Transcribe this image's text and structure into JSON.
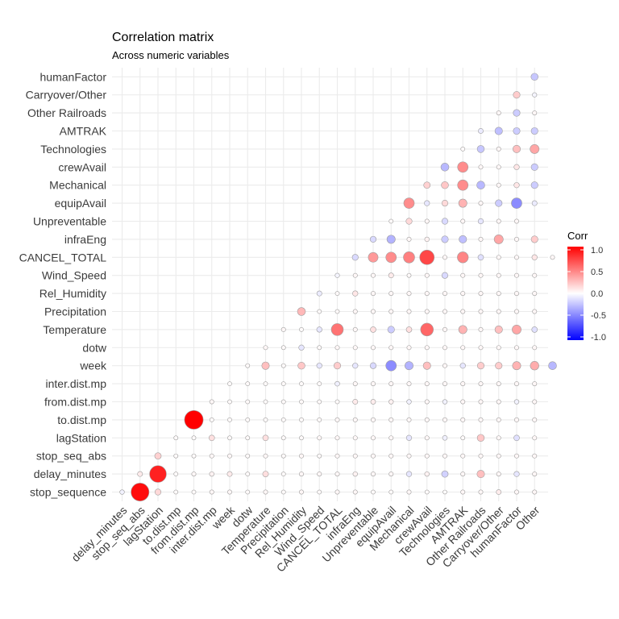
{
  "chart_data": {
    "type": "heatmap",
    "title": "Correlation matrix",
    "subtitle": "Across numeric variables",
    "variables": [
      "stop_sequence",
      "delay_minutes",
      "stop_seq_abs",
      "lagStation",
      "to.dist.mp",
      "from.dist.mp",
      "inter.dist.mp",
      "week",
      "dotw",
      "Temperature",
      "Precipitation",
      "Rel_Humidity",
      "Wind_Speed",
      "CANCEL_TOTAL",
      "infraEng",
      "Unpreventable",
      "equipAvail",
      "Mechanical",
      "crewAvail",
      "Technologies",
      "AMTRAK",
      "Other Railroads",
      "Carryover/Other",
      "humanFactor",
      "Other"
    ],
    "x_labels": [
      "delay_minutes",
      "stop_seq_abs",
      "lagStation",
      "to.dist.mp",
      "from.dist.mp",
      "inter.dist.mp",
      "week",
      "dotw",
      "Temperature",
      "Precipitation",
      "Rel_Humidity",
      "Wind_Speed",
      "CANCEL_TOTAL",
      "infraEng",
      "Unpreventable",
      "equipAvail",
      "Mechanical",
      "crewAvail",
      "Technologies",
      "AMTRAK",
      "Other Railroads",
      "Carryover/Other",
      "humanFactor",
      "Other"
    ],
    "y_labels": [
      "stop_sequence",
      "delay_minutes",
      "stop_seq_abs",
      "lagStation",
      "to.dist.mp",
      "from.dist.mp",
      "inter.dist.mp",
      "week",
      "dotw",
      "Temperature",
      "Precipitation",
      "Rel_Humidity",
      "Wind_Speed",
      "CANCEL_TOTAL",
      "infraEng",
      "Unpreventable",
      "equipAvail",
      "Mechanical",
      "crewAvail",
      "Technologies",
      "AMTRAK",
      "Other Railroads",
      "Carryover/Other",
      "humanFactor"
    ],
    "cells": [
      {
        "y": "stop_sequence",
        "values": [
          -0.05,
          0.95,
          0.15,
          0.02,
          0.02,
          0.03,
          0.03,
          0.02,
          0.03,
          0.02,
          0.03,
          0.02,
          0.03,
          0.03,
          0.02,
          0.02,
          0.03,
          0.02,
          0.01,
          0.03,
          0.03,
          0.07,
          0.03,
          0.03
        ]
      },
      {
        "y": "delay_minutes",
        "values": [
          0.08,
          0.87,
          0.02,
          0.03,
          0.05,
          0.08,
          0.02,
          0.13,
          0.02,
          0.03,
          0.03,
          0.03,
          0.05,
          0.03,
          0.03,
          -0.1,
          0.05,
          -0.18,
          0.03,
          0.25,
          0.03,
          -0.1,
          0.03
        ]
      },
      {
        "y": "stop_seq_abs",
        "values": [
          0.18,
          0.02,
          0.02,
          0.03,
          0.03,
          0.02,
          0.03,
          0.02,
          0.03,
          0.02,
          0.03,
          0.03,
          0.03,
          0.03,
          0.03,
          0.03,
          0.03,
          0.03,
          0.03,
          0.03,
          0.03,
          0.03
        ]
      },
      {
        "y": "lagStation",
        "values": [
          0.02,
          0.02,
          0.12,
          0.02,
          0.02,
          0.12,
          0.02,
          0.02,
          0.03,
          0.03,
          0.03,
          0.03,
          0.03,
          -0.1,
          0.03,
          -0.06,
          0.02,
          0.22,
          0.03,
          -0.12,
          0.03
        ]
      },
      {
        "y": "to.dist.mp",
        "values": [
          1.0,
          0.02,
          0.02,
          0.02,
          0.02,
          0.02,
          0.02,
          0.02,
          0.03,
          0.03,
          0.03,
          0.03,
          0.03,
          0.03,
          0.03,
          0.03,
          0.03,
          0.03,
          0.03,
          0.03
        ]
      },
      {
        "y": "from.dist.mp",
        "values": [
          0.03,
          0.02,
          0.02,
          0.02,
          0.02,
          0.02,
          0.02,
          0.02,
          0.08,
          0.07,
          0.05,
          -0.05,
          0.03,
          -0.05,
          0.03,
          0.03,
          0.03,
          -0.05,
          0.03
        ]
      },
      {
        "y": "inter.dist.mp",
        "values": [
          0.02,
          0.02,
          0.02,
          0.02,
          0.02,
          0.02,
          -0.06,
          0.03,
          0.03,
          0.03,
          0.03,
          0.03,
          0.03,
          0.03,
          0.03,
          0.03,
          0.03,
          0.03
        ]
      },
      {
        "y": "week",
        "values": [
          0.02,
          0.25,
          0.02,
          0.22,
          -0.1,
          0.2,
          -0.1,
          -0.15,
          -0.45,
          -0.3,
          0.25,
          0.03,
          -0.1,
          0.2,
          0.2,
          0.3,
          0.32,
          -0.28
        ]
      },
      {
        "y": "dotw",
        "values": [
          0.03,
          0.02,
          -0.1,
          0.02,
          0.03,
          0.03,
          0.03,
          0.03,
          0.03,
          0.03,
          0.03,
          0.03,
          0.03,
          0.03,
          0.03,
          0.03
        ]
      },
      {
        "y": "Temperature",
        "values": [
          0.03,
          0.02,
          -0.1,
          0.55,
          0.03,
          0.12,
          -0.2,
          0.12,
          0.6,
          0.03,
          0.3,
          0.03,
          0.25,
          0.35,
          -0.12
        ]
      },
      {
        "y": "Precipitation",
        "values": [
          0.28,
          0.02,
          0.02,
          0.03,
          0.03,
          0.03,
          0.03,
          0.03,
          0.03,
          0.03,
          0.03,
          0.03,
          0.03,
          0.03
        ]
      },
      {
        "y": "Rel_Humidity",
        "values": [
          -0.08,
          0.02,
          0.1,
          0.03,
          0.03,
          0.03,
          0.03,
          0.03,
          0.03,
          0.03,
          0.03,
          0.03,
          0.03
        ]
      },
      {
        "y": "Wind_Speed",
        "values": [
          -0.04,
          0.03,
          0.03,
          0.08,
          0.02,
          0.03,
          -0.15,
          0.03,
          0.03,
          0.03,
          0.03,
          0.03
        ]
      },
      {
        "y": "CANCEL_TOTAL",
        "values": [
          -0.15,
          0.4,
          0.45,
          0.5,
          0.72,
          0.03,
          0.48,
          -0.12,
          0.03,
          0.03,
          0.1,
          0.03
        ]
      },
      {
        "y": "infraEng",
        "values": [
          -0.15,
          -0.3,
          0.03,
          0.05,
          -0.2,
          -0.25,
          0.03,
          0.35,
          0.03,
          0.2
        ]
      },
      {
        "y": "Unpreventable",
        "values": [
          0.02,
          0.15,
          0.03,
          -0.15,
          0.03,
          -0.1,
          0.03,
          0.03
        ]
      },
      {
        "y": "equipAvail",
        "values": [
          0.45,
          -0.1,
          0.15,
          0.3,
          0.03,
          -0.2,
          -0.45,
          -0.08
        ]
      },
      {
        "y": "Mechanical",
        "values": [
          0.18,
          0.22,
          0.45,
          -0.28,
          0.03,
          0.1,
          -0.2
        ]
      },
      {
        "y": "crewAvail",
        "values": [
          -0.28,
          0.45,
          0.03,
          0.03,
          0.1,
          -0.2
        ]
      },
      {
        "y": "Technologies",
        "values": [
          0.02,
          -0.22,
          0.03,
          0.25,
          0.35
        ]
      },
      {
        "y": "AMTRAK",
        "values": [
          -0.08,
          -0.25,
          -0.2,
          -0.2
        ]
      },
      {
        "y": "Other Railroads",
        "values": [
          0.03,
          -0.2,
          0.03
        ]
      },
      {
        "y": "Carryover/Other",
        "values": [
          0.2,
          -0.04
        ]
      },
      {
        "y": "humanFactor",
        "values": [
          -0.22
        ]
      }
    ],
    "legend": {
      "title": "Corr",
      "placement": "right",
      "ticks": [
        "1.0",
        "0.5",
        "0.0",
        "-0.5",
        "-1.0"
      ],
      "range": [
        -1,
        1
      ],
      "colors": {
        "low": "#0000ff",
        "mid": "#ffffff",
        "high": "#ff0000"
      }
    },
    "grid": true
  }
}
